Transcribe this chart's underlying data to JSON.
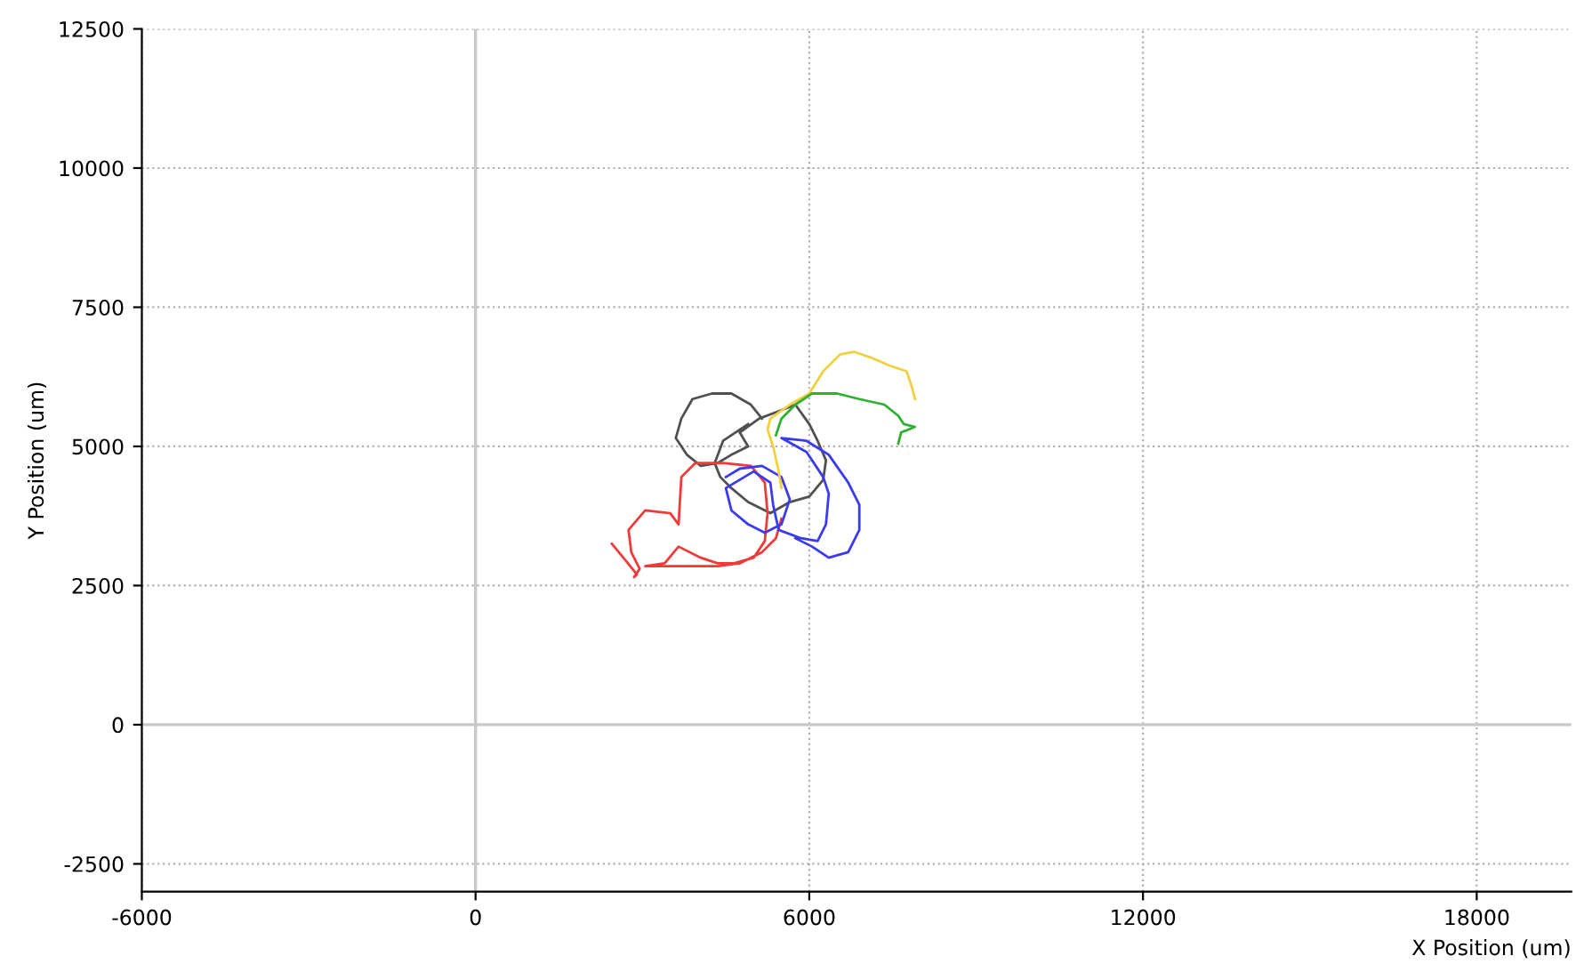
{
  "chart_data": {
    "type": "line",
    "xlabel": "X Position (um)",
    "ylabel": "Y Position (um)",
    "xlim": [
      -6000,
      19700
    ],
    "ylim": [
      -3000,
      12500
    ],
    "xticks": [
      -6000,
      0,
      6000,
      12000,
      18000
    ],
    "yticks": [
      -2500,
      0,
      2500,
      5000,
      7500,
      10000,
      12500
    ],
    "grid": true,
    "legend": false,
    "marker": "none",
    "line_style": "solid",
    "series": [
      {
        "color": "#505050",
        "x": [
          5150,
          4950,
          4600,
          4250,
          3900,
          3700,
          3600,
          3800,
          4050,
          4350,
          4600,
          4900,
          4750,
          5100,
          5500,
          5750,
          6000,
          6150,
          6300,
          6250,
          6000,
          5650,
          5300,
          4900,
          4600,
          4400,
          4300,
          4450,
          4900
        ],
        "values": [
          5500,
          5750,
          5950,
          5950,
          5850,
          5500,
          5150,
          4850,
          4650,
          4700,
          4850,
          5000,
          5250,
          5500,
          5650,
          5750,
          5400,
          5100,
          4750,
          4400,
          4100,
          4000,
          3800,
          4000,
          4250,
          4450,
          4700,
          5100,
          5400
        ]
      },
      {
        "color": "#f03a3a",
        "x": [
          2450,
          2700,
          2900,
          2850,
          2950,
          2800,
          2750,
          3050,
          3500,
          3650,
          3700,
          3950,
          4450,
          4950,
          5200,
          5250,
          5200,
          5000,
          4650,
          4350,
          4050,
          3650,
          3400,
          3050,
          3700,
          4350,
          4750,
          5150,
          5400,
          5500
        ],
        "values": [
          3250,
          2950,
          2700,
          2650,
          2800,
          3100,
          3500,
          3850,
          3800,
          3600,
          4450,
          4700,
          4700,
          4650,
          4350,
          3800,
          3300,
          3000,
          2900,
          2900,
          3000,
          3200,
          2900,
          2850,
          2850,
          2850,
          2900,
          3100,
          3350,
          3700
        ]
      },
      {
        "color": "#3a3af0",
        "x": [
          4500,
          4750,
          5150,
          5500,
          5650,
          5500,
          5200,
          4900,
          4600,
          4500,
          5000,
          5300,
          5350,
          5450,
          5850,
          6150,
          6300,
          6350,
          6250,
          5950,
          5500,
          5950,
          6350,
          6700,
          6900,
          6900,
          6700,
          6350,
          6050,
          5750
        ],
        "values": [
          4450,
          4600,
          4650,
          4450,
          4050,
          3600,
          3450,
          3600,
          3850,
          4250,
          4550,
          4350,
          3950,
          3500,
          3350,
          3300,
          3600,
          4150,
          4450,
          4900,
          5150,
          5100,
          4850,
          4350,
          3950,
          3500,
          3100,
          3000,
          3200,
          3350
        ]
      },
      {
        "color": "#f0d040",
        "x": [
          5500,
          5450,
          5350,
          5250,
          5300,
          5650,
          6000,
          6250,
          6550,
          6800,
          7100,
          7450,
          7750,
          7850,
          7900
        ],
        "values": [
          4250,
          4550,
          5000,
          5300,
          5500,
          5750,
          5950,
          6350,
          6650,
          6700,
          6600,
          6450,
          6350,
          6050,
          5850
        ]
      },
      {
        "color": "#30b030",
        "x": [
          5400,
          5500,
          5750,
          6050,
          6500,
          6900,
          7350,
          7600,
          7700,
          7900,
          7650,
          7600
        ],
        "values": [
          5200,
          5500,
          5750,
          5950,
          5950,
          5850,
          5750,
          5550,
          5400,
          5350,
          5250,
          5050
        ]
      }
    ]
  }
}
